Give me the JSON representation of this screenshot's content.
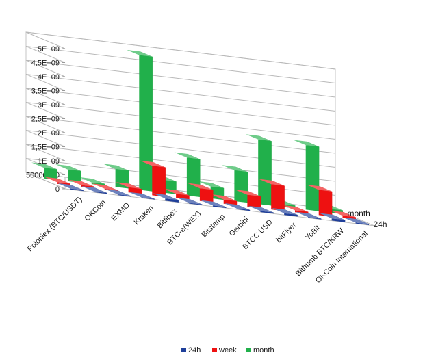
{
  "chart_data": {
    "type": "bar",
    "style": "3d-clustered",
    "categories": [
      "Poloniex (BTC/USDT)",
      "OKCoin",
      "EXMO",
      "Kraken",
      "Bitfinex",
      "BTC-e(WEX)",
      "Bitstamp",
      "Gemini",
      "BTCC USD",
      "bitFlyer",
      "YoBit",
      "Bithumb BTC/KRW",
      "OKCoin International"
    ],
    "series": [
      {
        "name": "24h",
        "color": "#1f3f9a",
        "values": [
          30000000,
          30000000,
          25000000,
          20000000,
          80000000,
          25000000,
          35000000,
          30000000,
          40000000,
          60000000,
          25000000,
          80000000,
          30000000
        ]
      },
      {
        "name": "week",
        "color": "#ee1111",
        "values": [
          60000000,
          60000000,
          30000000,
          180000000,
          1050000000,
          150000000,
          450000000,
          150000000,
          420000000,
          900000000,
          70000000,
          900000000,
          80000000
        ]
      },
      {
        "name": "month",
        "color": "#21b04b",
        "values": [
          380000000,
          420000000,
          60000000,
          640000000,
          4800000000,
          450000000,
          1350000000,
          420000000,
          1100000000,
          2300000000,
          100000000,
          2300000000,
          130000000
        ]
      }
    ],
    "depth_labels": [
      "24h",
      "month"
    ],
    "yticks": [
      "0",
      "50000000",
      "1E+09",
      "1,5E+09",
      "2E+09",
      "2,5E+09",
      "3E+09",
      "3,5E+09",
      "4E+09",
      "4,5E+09",
      "5E+09"
    ],
    "ylim": [
      0,
      5000000000
    ],
    "grid": true,
    "legend": "bottom",
    "title": "",
    "xlabel": "",
    "ylabel": ""
  }
}
